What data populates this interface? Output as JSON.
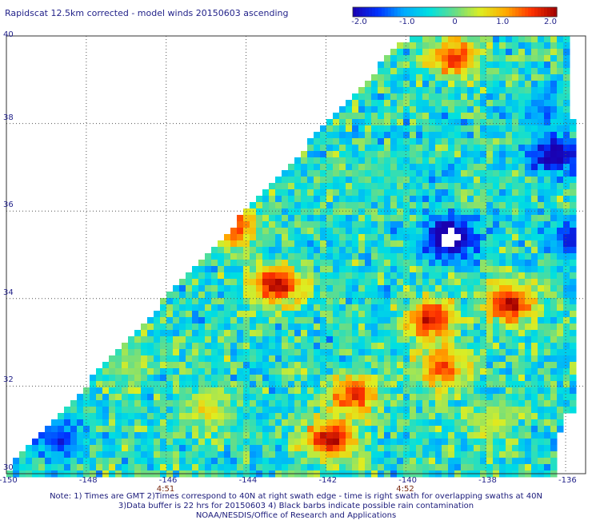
{
  "title": "Rapidscat 12.5km corrected - model winds 20150603 ascending",
  "colorbar": {
    "ticks": [
      "-2.0",
      "-1.0",
      "0",
      "1.0",
      "2.0"
    ],
    "range": [
      -2.0,
      2.0
    ],
    "colors": [
      "#1a00b0",
      "#0033ff",
      "#00aaff",
      "#00e0e0",
      "#66dd88",
      "#ddee22",
      "#ffaa00",
      "#ff3300",
      "#a00000"
    ]
  },
  "axes": {
    "lon_ticks": [
      "-150",
      "-148",
      "-146",
      "-144",
      "-142",
      "-140",
      "-138",
      "-136"
    ],
    "lat_ticks": [
      "40",
      "38",
      "36",
      "34",
      "32",
      "30"
    ],
    "lon_range": [
      -150,
      -135.5
    ],
    "lat_range": [
      30,
      40
    ]
  },
  "times": [
    {
      "label": "4:51",
      "lon": -146
    },
    {
      "label": "4:52",
      "lon": -140
    }
  ],
  "notes": [
    "Note: 1) Times are GMT 2)Times correspond to 40N at right swath edge - time is right swath for overlapping swaths at 40N",
    "3)Data buffer is 22 hrs for 20150603 4) Black barbs indicate possible rain contamination",
    "NOAA/NESDIS/Office of Research and Applications"
  ],
  "features": [
    {
      "lon": -143.2,
      "lat": 34.3,
      "value": 2.0
    },
    {
      "lon": -141.9,
      "lat": 30.8,
      "value": 2.0
    },
    {
      "lon": -137.4,
      "lat": 33.9,
      "value": 2.0
    },
    {
      "lon": -139.4,
      "lat": 33.5,
      "value": 1.9
    },
    {
      "lon": -138.8,
      "lat": 39.5,
      "value": 1.6
    },
    {
      "lon": -144.3,
      "lat": 35.6,
      "value": 1.5
    },
    {
      "lon": -141.3,
      "lat": 31.8,
      "value": 1.6
    },
    {
      "lon": -139.1,
      "lat": 32.4,
      "value": 1.4
    },
    {
      "lon": -138.9,
      "lat": 35.4,
      "value": -2.6
    },
    {
      "lon": -136.3,
      "lat": 37.3,
      "value": -2.1
    },
    {
      "lon": -135.8,
      "lat": 35.4,
      "value": -1.8
    },
    {
      "lon": -148.7,
      "lat": 30.8,
      "value": -1.6
    },
    {
      "lon": -136.6,
      "lat": 38.3,
      "value": -1.2
    },
    {
      "lon": -147.0,
      "lat": 32.5,
      "value": 0.2
    },
    {
      "lon": -145.0,
      "lat": 31.5,
      "value": 0.6
    },
    {
      "lon": -140.5,
      "lat": 36.8,
      "value": -0.3
    },
    {
      "lon": -137.8,
      "lat": 31.2,
      "value": 0.4
    }
  ]
}
